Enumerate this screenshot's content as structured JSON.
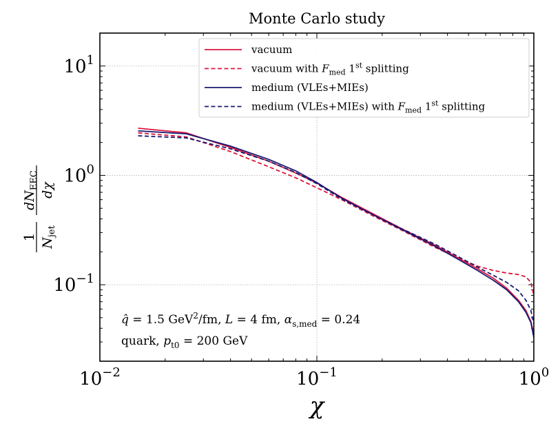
{
  "chart_data": {
    "type": "line",
    "title": "Monte Carlo study",
    "xlabel": "χ",
    "ylabel": {
      "prefix_num": "1",
      "prefix_den_base": "N",
      "prefix_den_sub": "jet",
      "deriv_num_base": "dN",
      "deriv_num_sub": "EEC",
      "deriv_den": "dχ"
    },
    "xscale": "log",
    "yscale": "log",
    "xlim": [
      0.01,
      1.0
    ],
    "ylim": [
      0.02,
      20
    ],
    "x_ticks": [
      {
        "value": 0.01,
        "base": "10",
        "exp": "−2"
      },
      {
        "value": 0.1,
        "base": "10",
        "exp": "−1"
      },
      {
        "value": 1.0,
        "base": "10",
        "exp": "0"
      }
    ],
    "y_ticks": [
      {
        "value": 0.1,
        "base": "10",
        "exp": "−1"
      },
      {
        "value": 1.0,
        "base": "10",
        "exp": "0"
      },
      {
        "value": 10,
        "base": "10",
        "exp": "1"
      }
    ],
    "grid": true,
    "legend_position": "top-right",
    "series": [
      {
        "name": "vacuum",
        "label_parts": [
          {
            "t": "vacuum",
            "s": "n"
          }
        ],
        "color": "#dc143c",
        "dash": "solid",
        "x": [
          0.015,
          0.025,
          0.04,
          0.06,
          0.08,
          0.1,
          0.13,
          0.18,
          0.25,
          0.35,
          0.45,
          0.55,
          0.65,
          0.75,
          0.85,
          0.92,
          0.97,
          1.0
        ],
        "y": [
          2.7,
          2.45,
          1.8,
          1.35,
          1.05,
          0.85,
          0.63,
          0.45,
          0.32,
          0.23,
          0.175,
          0.14,
          0.115,
          0.093,
          0.072,
          0.058,
          0.046,
          0.035
        ]
      },
      {
        "name": "vacuum with F_med 1^st splitting",
        "label_parts": [
          {
            "t": "vacuum with ",
            "s": "n"
          },
          {
            "t": "F",
            "s": "i"
          },
          {
            "t": "med",
            "s": "sub"
          },
          {
            "t": " 1",
            "s": "n"
          },
          {
            "t": "st",
            "s": "sup"
          },
          {
            "t": " splitting",
            "s": "n"
          }
        ],
        "color": "#dc143c",
        "dash": "dashed",
        "x": [
          0.015,
          0.025,
          0.04,
          0.06,
          0.08,
          0.1,
          0.13,
          0.18,
          0.25,
          0.35,
          0.45,
          0.55,
          0.65,
          0.75,
          0.85,
          0.92,
          0.97,
          1.0
        ],
        "y": [
          2.45,
          2.25,
          1.65,
          1.2,
          0.95,
          0.77,
          0.6,
          0.43,
          0.31,
          0.22,
          0.175,
          0.148,
          0.135,
          0.128,
          0.124,
          0.118,
          0.105,
          0.08
        ]
      },
      {
        "name": "medium (VLEs+MIEs)",
        "label_parts": [
          {
            "t": "medium (VLEs+MIEs)",
            "s": "n"
          }
        ],
        "color": "#191970",
        "dash": "solid",
        "x": [
          0.015,
          0.025,
          0.04,
          0.06,
          0.08,
          0.1,
          0.13,
          0.18,
          0.25,
          0.35,
          0.45,
          0.55,
          0.65,
          0.75,
          0.85,
          0.92,
          0.97,
          1.0
        ],
        "y": [
          2.55,
          2.4,
          1.85,
          1.4,
          1.1,
          0.86,
          0.62,
          0.44,
          0.315,
          0.225,
          0.17,
          0.135,
          0.11,
          0.09,
          0.07,
          0.056,
          0.045,
          0.033
        ]
      },
      {
        "name": "medium (VLEs+MIEs) with F_med 1^st splitting",
        "label_parts": [
          {
            "t": "medium (VLEs+MIEs) with ",
            "s": "n"
          },
          {
            "t": "F",
            "s": "i"
          },
          {
            "t": "med",
            "s": "sub"
          },
          {
            "t": " 1",
            "s": "n"
          },
          {
            "t": "st",
            "s": "sup"
          },
          {
            "t": " splitting",
            "s": "n"
          }
        ],
        "color": "#191970",
        "dash": "dashed",
        "x": [
          0.015,
          0.025,
          0.04,
          0.06,
          0.08,
          0.1,
          0.13,
          0.18,
          0.25,
          0.35,
          0.45,
          0.55,
          0.65,
          0.75,
          0.85,
          0.92,
          0.97,
          1.0
        ],
        "y": [
          2.3,
          2.2,
          1.75,
          1.35,
          1.06,
          0.84,
          0.61,
          0.44,
          0.32,
          0.235,
          0.18,
          0.145,
          0.122,
          0.105,
          0.088,
          0.072,
          0.058,
          0.044
        ]
      }
    ],
    "annotations": [
      {
        "parts": [
          {
            "t": "q̂",
            "s": "i"
          },
          {
            "t": " = 1.5 GeV",
            "s": "n"
          },
          {
            "t": "2",
            "s": "sup"
          },
          {
            "t": "/fm, ",
            "s": "n"
          },
          {
            "t": "L",
            "s": "i"
          },
          {
            "t": " = 4 fm, ",
            "s": "n"
          },
          {
            "t": "α",
            "s": "i"
          },
          {
            "t": "s,med",
            "s": "sub"
          },
          {
            "t": " = 0.24",
            "s": "n"
          }
        ]
      },
      {
        "parts": [
          {
            "t": "quark, ",
            "s": "n"
          },
          {
            "t": "p",
            "s": "i"
          },
          {
            "t": "t0",
            "s": "sub"
          },
          {
            "t": " = 200 GeV",
            "s": "n"
          }
        ]
      }
    ]
  }
}
